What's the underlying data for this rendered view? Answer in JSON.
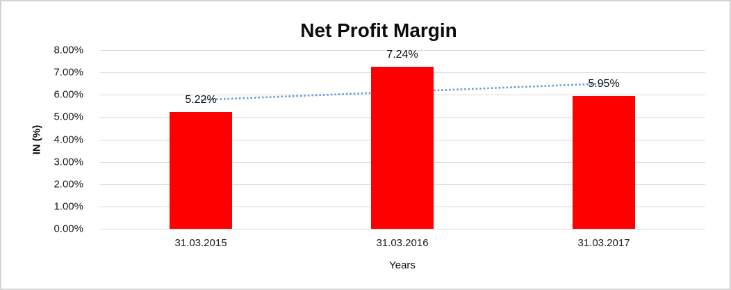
{
  "chart_data": {
    "type": "bar",
    "title": "Net Profit Margin",
    "xlabel": "Years",
    "ylabel": "IN (%)",
    "categories": [
      "31.03.2015",
      "31.03.2016",
      "31.03.2017"
    ],
    "values": [
      5.22,
      7.24,
      5.95
    ],
    "data_labels": [
      "5.22%",
      "7.24%",
      "5.95%"
    ],
    "ylim": [
      0,
      8
    ],
    "ytick_labels": [
      "0.00%",
      "1.00%",
      "2.00%",
      "3.00%",
      "4.00%",
      "5.00%",
      "6.00%",
      "7.00%",
      "8.00%"
    ],
    "grid": true,
    "legend": "none",
    "bar_color": "#ff0000",
    "gridline_color": "#d9d9d9",
    "text_color": "#0d0d0d",
    "trendline": {
      "type": "linear",
      "style": "dotted",
      "color": "#5b9bd5",
      "start_value": 5.77,
      "end_value": 6.5
    }
  }
}
